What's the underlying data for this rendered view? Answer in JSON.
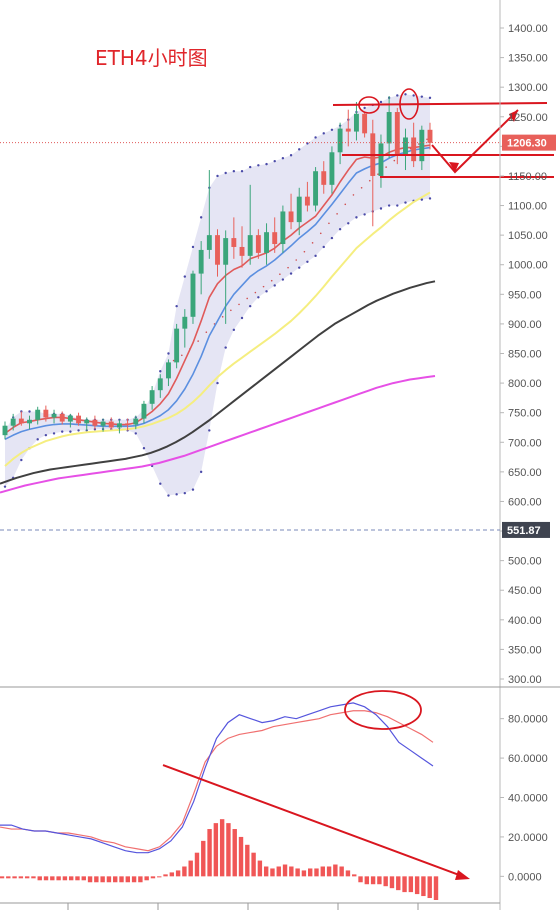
{
  "chart_data": [
    {
      "type": "candlestick",
      "title": "ETH4小时图",
      "y_ticks": [
        1400,
        1350,
        1300,
        1250,
        1200,
        1150,
        1100,
        1050,
        1000,
        950,
        900,
        850,
        800,
        750,
        700,
        650,
        600,
        550,
        500,
        450,
        400,
        350,
        300
      ],
      "ylim": [
        290,
        1420
      ],
      "last_price": 1206.3,
      "marker_price": 551.87,
      "candles": [
        {
          "o": 712,
          "h": 735,
          "l": 705,
          "c": 728
        },
        {
          "o": 728,
          "h": 748,
          "l": 720,
          "c": 740
        },
        {
          "o": 740,
          "h": 752,
          "l": 728,
          "c": 732
        },
        {
          "o": 732,
          "h": 745,
          "l": 722,
          "c": 738
        },
        {
          "o": 738,
          "h": 760,
          "l": 730,
          "c": 755
        },
        {
          "o": 755,
          "h": 762,
          "l": 735,
          "c": 742
        },
        {
          "o": 742,
          "h": 755,
          "l": 732,
          "c": 748
        },
        {
          "o": 748,
          "h": 752,
          "l": 730,
          "c": 735
        },
        {
          "o": 735,
          "h": 748,
          "l": 725,
          "c": 745
        },
        {
          "o": 745,
          "h": 750,
          "l": 728,
          "c": 732
        },
        {
          "o": 732,
          "h": 742,
          "l": 720,
          "c": 738
        },
        {
          "o": 738,
          "h": 745,
          "l": 722,
          "c": 728
        },
        {
          "o": 728,
          "h": 740,
          "l": 718,
          "c": 735
        },
        {
          "o": 735,
          "h": 742,
          "l": 722,
          "c": 725
        },
        {
          "o": 725,
          "h": 738,
          "l": 715,
          "c": 732
        },
        {
          "o": 732,
          "h": 740,
          "l": 720,
          "c": 730
        },
        {
          "o": 730,
          "h": 745,
          "l": 722,
          "c": 740
        },
        {
          "o": 740,
          "h": 770,
          "l": 732,
          "c": 765
        },
        {
          "o": 765,
          "h": 795,
          "l": 755,
          "c": 788
        },
        {
          "o": 788,
          "h": 815,
          "l": 775,
          "c": 808
        },
        {
          "o": 808,
          "h": 840,
          "l": 795,
          "c": 835
        },
        {
          "o": 835,
          "h": 900,
          "l": 825,
          "c": 892
        },
        {
          "o": 892,
          "h": 925,
          "l": 860,
          "c": 912
        },
        {
          "o": 912,
          "h": 990,
          "l": 900,
          "c": 985
        },
        {
          "o": 985,
          "h": 1040,
          "l": 950,
          "c": 1025
        },
        {
          "o": 1025,
          "h": 1160,
          "l": 1010,
          "c": 1050
        },
        {
          "o": 1050,
          "h": 1060,
          "l": 980,
          "c": 1000
        },
        {
          "o": 1000,
          "h": 1058,
          "l": 900,
          "c": 1045
        },
        {
          "o": 1045,
          "h": 1080,
          "l": 1010,
          "c": 1030
        },
        {
          "o": 1030,
          "h": 1065,
          "l": 995,
          "c": 1015
        },
        {
          "o": 1015,
          "h": 1135,
          "l": 1000,
          "c": 1050
        },
        {
          "o": 1050,
          "h": 1060,
          "l": 1010,
          "c": 1020
        },
        {
          "o": 1020,
          "h": 1070,
          "l": 1000,
          "c": 1055
        },
        {
          "o": 1055,
          "h": 1080,
          "l": 1020,
          "c": 1035
        },
        {
          "o": 1035,
          "h": 1100,
          "l": 1020,
          "c": 1090
        },
        {
          "o": 1090,
          "h": 1120,
          "l": 1060,
          "c": 1072
        },
        {
          "o": 1072,
          "h": 1130,
          "l": 1050,
          "c": 1115
        },
        {
          "o": 1115,
          "h": 1140,
          "l": 1090,
          "c": 1100
        },
        {
          "o": 1100,
          "h": 1165,
          "l": 1090,
          "c": 1158
        },
        {
          "o": 1158,
          "h": 1175,
          "l": 1120,
          "c": 1135
        },
        {
          "o": 1135,
          "h": 1200,
          "l": 1120,
          "c": 1190
        },
        {
          "o": 1190,
          "h": 1240,
          "l": 1170,
          "c": 1230
        },
        {
          "o": 1230,
          "h": 1262,
          "l": 1200,
          "c": 1225
        },
        {
          "o": 1225,
          "h": 1275,
          "l": 1210,
          "c": 1255
        },
        {
          "o": 1255,
          "h": 1258,
          "l": 1215,
          "c": 1222
        },
        {
          "o": 1222,
          "h": 1245,
          "l": 1065,
          "c": 1150
        },
        {
          "o": 1150,
          "h": 1220,
          "l": 1130,
          "c": 1205
        },
        {
          "o": 1205,
          "h": 1285,
          "l": 1180,
          "c": 1258
        },
        {
          "o": 1258,
          "h": 1265,
          "l": 1170,
          "c": 1185
        },
        {
          "o": 1185,
          "h": 1230,
          "l": 1160,
          "c": 1215
        },
        {
          "o": 1215,
          "h": 1240,
          "l": 1165,
          "c": 1175
        },
        {
          "o": 1175,
          "h": 1235,
          "l": 1160,
          "c": 1228
        },
        {
          "o": 1228,
          "h": 1240,
          "l": 1195,
          "c": 1206
        }
      ],
      "bollinger_upper": [
        720,
        742,
        752,
        752,
        752,
        748,
        748,
        748,
        745,
        740,
        738,
        738,
        738,
        738,
        738,
        738,
        742,
        755,
        780,
        820,
        850,
        930,
        980,
        1030,
        1080,
        1130,
        1150,
        1155,
        1158,
        1158,
        1165,
        1168,
        1170,
        1175,
        1180,
        1185,
        1195,
        1205,
        1215,
        1222,
        1228,
        1235,
        1245,
        1258,
        1265,
        1270,
        1275,
        1282,
        1286,
        1288,
        1286,
        1284,
        1282
      ],
      "bollinger_lower": [
        625,
        640,
        670,
        690,
        705,
        712,
        715,
        718,
        718,
        720,
        720,
        722,
        722,
        722,
        722,
        720,
        715,
        690,
        660,
        630,
        610,
        612,
        614,
        620,
        650,
        720,
        800,
        860,
        890,
        910,
        930,
        945,
        955,
        965,
        975,
        985,
        995,
        1005,
        1015,
        1030,
        1045,
        1060,
        1070,
        1080,
        1085,
        1090,
        1095,
        1100,
        1100,
        1105,
        1108,
        1110,
        1112
      ],
      "ma_red": [
        715,
        725,
        733,
        735,
        738,
        740,
        742,
        742,
        740,
        738,
        736,
        734,
        732,
        731,
        730,
        730,
        733,
        742,
        752,
        765,
        782,
        808,
        838,
        868,
        905,
        945,
        968,
        982,
        992,
        998,
        1010,
        1015,
        1020,
        1028,
        1040,
        1050,
        1062,
        1072,
        1082,
        1100,
        1118,
        1140,
        1160,
        1178,
        1182,
        1180,
        1182,
        1190,
        1195,
        1198,
        1198,
        1200,
        1202
      ],
      "ma_blue": [
        705,
        712,
        718,
        722,
        725,
        728,
        730,
        731,
        731,
        730,
        729,
        728,
        727,
        727,
        727,
        727,
        728,
        732,
        738,
        745,
        755,
        770,
        790,
        815,
        845,
        880,
        905,
        930,
        950,
        965,
        980,
        990,
        998,
        1008,
        1020,
        1032,
        1045,
        1056,
        1068,
        1085,
        1102,
        1120,
        1138,
        1155,
        1162,
        1168,
        1172,
        1180,
        1186,
        1190,
        1194,
        1196,
        1198
      ],
      "ma_yellow": [
        660,
        672,
        682,
        690,
        696,
        702,
        706,
        710,
        713,
        715,
        717,
        718,
        719,
        720,
        721,
        722,
        724,
        727,
        731,
        736,
        741,
        748,
        757,
        768,
        781,
        796,
        810,
        822,
        833,
        843,
        853,
        863,
        873,
        883,
        894,
        905,
        918,
        932,
        947,
        963,
        980,
        996,
        1012,
        1028,
        1040,
        1052,
        1063,
        1075,
        1086,
        1096,
        1106,
        1114,
        1122
      ],
      "ma_dark": [
        630,
        635,
        640,
        644,
        648,
        651,
        654,
        656,
        658,
        660,
        662,
        664,
        666,
        668,
        670,
        672,
        675,
        678,
        682,
        687,
        693,
        700,
        708,
        717,
        727,
        737,
        748,
        759,
        770,
        781,
        792,
        803,
        814,
        825,
        836,
        847,
        858,
        869,
        880,
        890,
        900,
        908,
        916,
        924,
        932,
        939,
        945,
        951,
        956,
        961,
        965,
        969,
        972
      ],
      "ma_magenta": [
        615,
        619,
        623,
        627,
        630,
        633,
        636,
        639,
        641,
        643,
        645,
        647,
        649,
        651,
        653,
        655,
        657,
        659,
        662,
        665,
        669,
        673,
        677,
        682,
        687,
        692,
        697,
        702,
        707,
        712,
        717,
        722,
        727,
        732,
        737,
        742,
        747,
        752,
        757,
        762,
        767,
        772,
        777,
        782,
        787,
        792,
        796,
        800,
        803,
        806,
        808,
        810,
        812
      ]
    },
    {
      "type": "macd",
      "y_ticks": [
        80,
        60,
        40,
        20,
        0
      ],
      "y_tick_labels": [
        "80.0000",
        "60.0000",
        "40.0000",
        "20.0000",
        "0.0000"
      ],
      "ylim": [
        -12,
        92
      ],
      "k_line": [
        26,
        26,
        24,
        23,
        23,
        22,
        21,
        20,
        19,
        17,
        15,
        13,
        12,
        12,
        14,
        18,
        25,
        38,
        55,
        70,
        78,
        82,
        80,
        78,
        79,
        81,
        80,
        82,
        84,
        86,
        87,
        88,
        86,
        82,
        76,
        68,
        64,
        60,
        56
      ],
      "d_line": [
        25,
        24,
        24,
        23,
        23,
        22,
        22,
        21,
        20,
        18,
        17,
        15,
        14,
        13,
        15,
        20,
        27,
        42,
        58,
        66,
        70,
        72,
        73,
        74,
        76,
        77,
        78,
        79,
        80,
        82,
        83,
        84,
        84,
        83,
        81,
        78,
        75,
        72,
        68
      ],
      "histogram": [
        -1,
        -1,
        -1,
        -1,
        -1,
        -1,
        -2,
        -2,
        -2,
        -2,
        -2,
        -2,
        -2,
        -2,
        -3,
        -3,
        -3,
        -3,
        -3,
        -3,
        -3,
        -3,
        -3,
        -2,
        -1,
        0,
        1,
        2,
        3,
        5,
        8,
        12,
        18,
        24,
        27,
        29,
        27,
        24,
        20,
        16,
        12,
        8,
        5,
        4,
        5,
        6,
        5,
        4,
        3,
        4,
        4,
        5,
        5,
        6,
        5,
        3,
        1,
        -3,
        -4,
        -4,
        -4,
        -5,
        -6,
        -7,
        -8,
        -8,
        -9,
        -10,
        -11,
        -12
      ]
    }
  ]
}
